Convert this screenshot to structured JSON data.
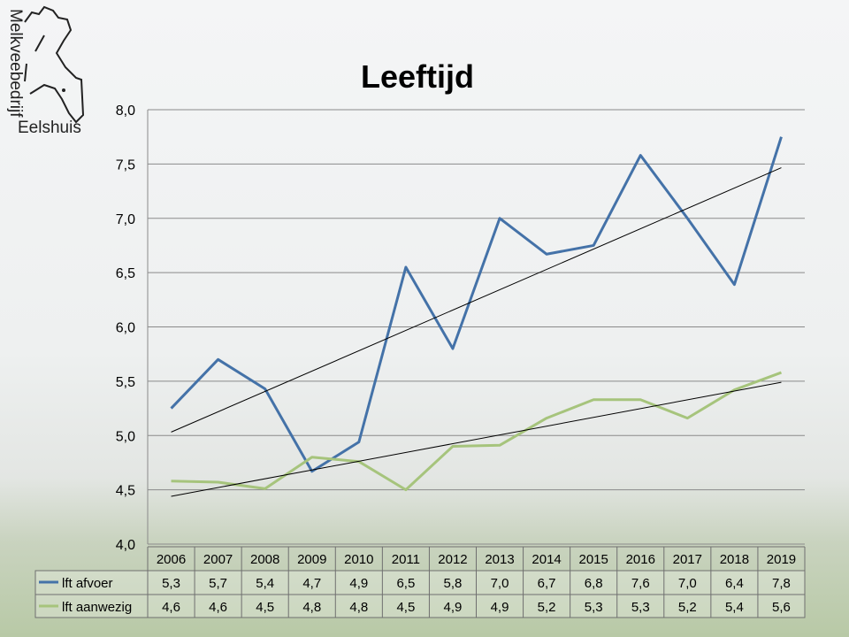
{
  "logo": {
    "line1": "Melkveebedrijf",
    "line2": "Eelshuis"
  },
  "chart_data": {
    "type": "line",
    "title": "Leeftijd",
    "categories": [
      "2006",
      "2007",
      "2008",
      "2009",
      "2010",
      "2011",
      "2012",
      "2013",
      "2014",
      "2015",
      "2016",
      "2017",
      "2018",
      "2019"
    ],
    "ylim": [
      4.0,
      8.0
    ],
    "yticks": [
      "4,0",
      "4,5",
      "5,0",
      "5,5",
      "6,0",
      "6,5",
      "7,0",
      "7,5",
      "8,0"
    ],
    "grid": true,
    "legend": "data-table",
    "trendlines": "linear",
    "series": [
      {
        "name": "lft afvoer",
        "color": "#4472a8",
        "values": [
          5.25,
          5.7,
          5.43,
          4.67,
          4.94,
          6.55,
          5.8,
          7.0,
          6.67,
          6.75,
          7.58,
          7.0,
          6.39,
          7.75
        ],
        "labels": [
          "5,3",
          "5,7",
          "5,4",
          "4,7",
          "4,9",
          "6,5",
          "5,8",
          "7,0",
          "6,7",
          "6,8",
          "7,6",
          "7,0",
          "6,4",
          "7,8"
        ]
      },
      {
        "name": "lft aanwezig",
        "color": "#a6c47c",
        "values": [
          4.58,
          4.57,
          4.51,
          4.8,
          4.76,
          4.5,
          4.9,
          4.91,
          5.16,
          5.33,
          5.33,
          5.16,
          5.42,
          5.58
        ],
        "labels": [
          "4,6",
          "4,6",
          "4,5",
          "4,8",
          "4,8",
          "4,5",
          "4,9",
          "4,9",
          "5,2",
          "5,3",
          "5,3",
          "5,2",
          "5,4",
          "5,6"
        ]
      }
    ]
  }
}
